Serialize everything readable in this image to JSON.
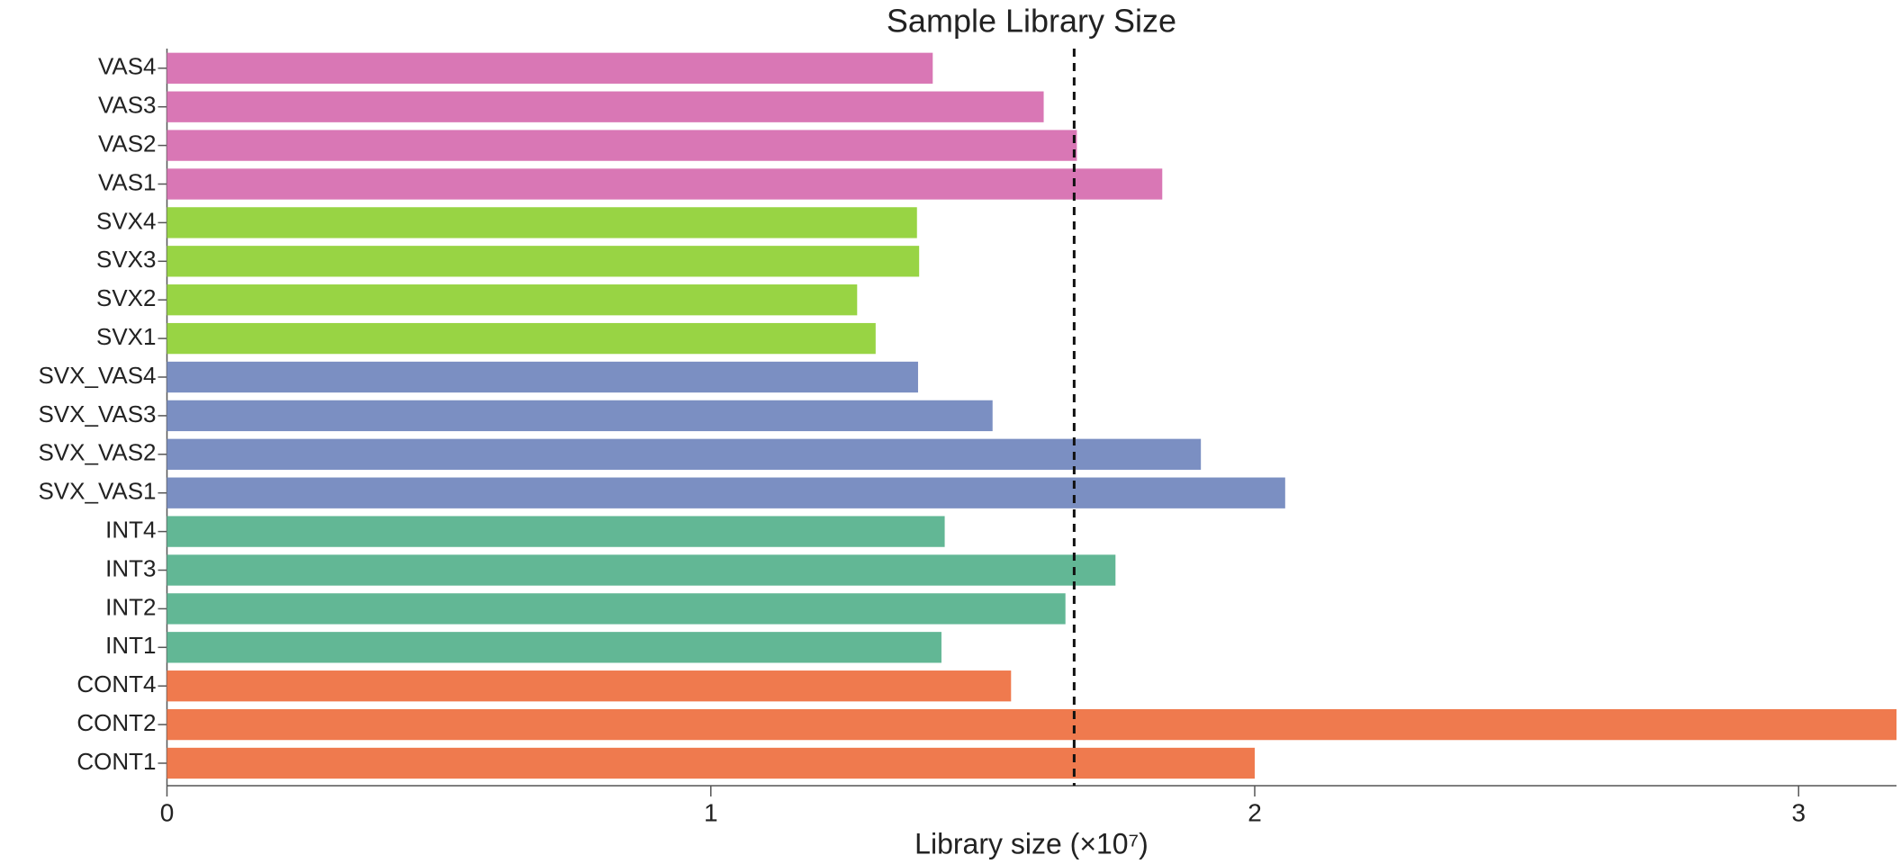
{
  "chart_data": {
    "type": "hbar",
    "title": "Sample Library Size",
    "x_label": "Library size (×10⁷)",
    "categories": [
      "VAS4",
      "VAS3",
      "VAS2",
      "VAS1",
      "SVX4",
      "SVX3",
      "SVX2",
      "SVX1",
      "SVX_VAS4",
      "SVX_VAS3",
      "SVX_VAS2",
      "SVX_VAS1",
      "INT4",
      "INT3",
      "INT2",
      "INT1",
      "CONT4",
      "CONT2",
      "CONT1"
    ],
    "values": [
      1.408,
      1.612,
      1.673,
      1.83,
      1.379,
      1.383,
      1.269,
      1.303,
      1.381,
      1.518,
      1.901,
      2.056,
      1.43,
      1.744,
      1.652,
      1.424,
      1.552,
      3.18,
      2.0
    ],
    "colors": [
      "#d977b5",
      "#d977b5",
      "#d977b5",
      "#d977b5",
      "#98d444",
      "#98d444",
      "#98d444",
      "#98d444",
      "#7b8fc2",
      "#7b8fc2",
      "#7b8fc2",
      "#7b8fc2",
      "#62b795",
      "#62b795",
      "#62b795",
      "#62b795",
      "#ef7a4e",
      "#ef7a4e",
      "#ef7a4e"
    ],
    "reference_line": 1.668,
    "xlim": [
      0,
      3.18
    ],
    "xticks": [
      0,
      1,
      2,
      3
    ],
    "grid": false
  }
}
